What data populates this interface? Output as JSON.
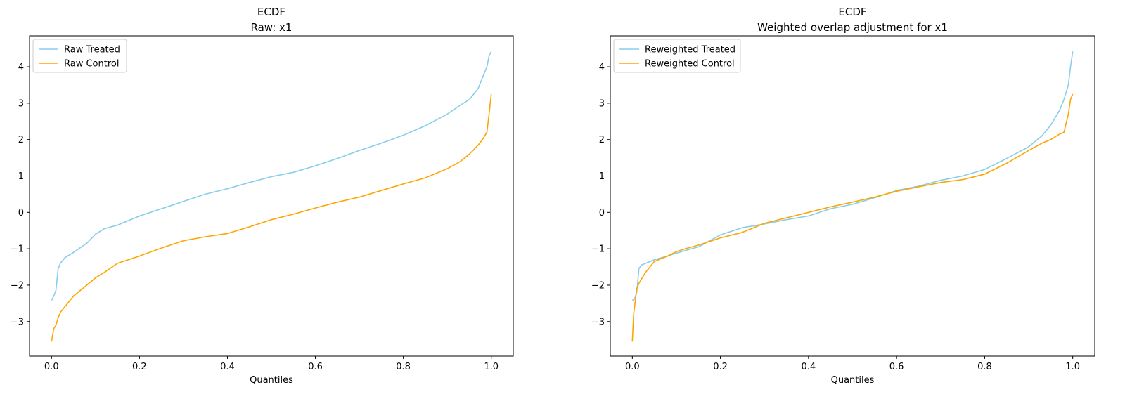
{
  "chart_data": [
    {
      "type": "line",
      "title": "ECDF",
      "subtitle": "Raw: x1",
      "xlabel": "Quantiles",
      "ylabel": "",
      "xlim": [
        -0.05,
        1.05
      ],
      "ylim": [
        -3.95,
        4.85
      ],
      "xticks": [
        "0.0",
        "0.2",
        "0.4",
        "0.6",
        "0.8",
        "1.0"
      ],
      "yticks": [
        "−3",
        "−2",
        "−1",
        "0",
        "1",
        "2",
        "3",
        "4"
      ],
      "legend_position": "top-left",
      "series": [
        {
          "name": "Raw Treated",
          "color": "#87ceeb",
          "x": [
            0.0,
            0.005,
            0.01,
            0.015,
            0.02,
            0.03,
            0.05,
            0.08,
            0.1,
            0.12,
            0.15,
            0.2,
            0.25,
            0.3,
            0.35,
            0.4,
            0.45,
            0.5,
            0.55,
            0.6,
            0.65,
            0.7,
            0.75,
            0.8,
            0.85,
            0.9,
            0.93,
            0.95,
            0.97,
            0.98,
            0.99,
            0.995,
            1.0
          ],
          "y": [
            -2.42,
            -2.3,
            -2.15,
            -1.55,
            -1.4,
            -1.25,
            -1.1,
            -0.85,
            -0.6,
            -0.45,
            -0.35,
            -0.1,
            0.1,
            0.3,
            0.5,
            0.65,
            0.82,
            0.98,
            1.1,
            1.28,
            1.48,
            1.7,
            1.9,
            2.12,
            2.38,
            2.7,
            2.95,
            3.1,
            3.4,
            3.7,
            4.0,
            4.3,
            4.42
          ]
        },
        {
          "name": "Raw Control",
          "color": "#ffa500",
          "x": [
            0.0,
            0.005,
            0.01,
            0.015,
            0.02,
            0.03,
            0.05,
            0.08,
            0.1,
            0.12,
            0.15,
            0.2,
            0.25,
            0.3,
            0.35,
            0.4,
            0.45,
            0.5,
            0.55,
            0.6,
            0.65,
            0.7,
            0.75,
            0.8,
            0.85,
            0.9,
            0.93,
            0.95,
            0.97,
            0.98,
            0.99,
            0.995,
            1.0
          ],
          "y": [
            -3.55,
            -3.2,
            -3.1,
            -2.9,
            -2.75,
            -2.6,
            -2.3,
            -2.0,
            -1.8,
            -1.65,
            -1.4,
            -1.2,
            -0.98,
            -0.78,
            -0.67,
            -0.58,
            -0.4,
            -0.2,
            -0.05,
            0.12,
            0.28,
            0.42,
            0.6,
            0.78,
            0.95,
            1.2,
            1.4,
            1.6,
            1.85,
            2.0,
            2.2,
            2.7,
            3.25
          ]
        }
      ]
    },
    {
      "type": "line",
      "title": "ECDF",
      "subtitle": "Weighted overlap adjustment for x1",
      "xlabel": "Quantiles",
      "ylabel": "",
      "xlim": [
        -0.05,
        1.05
      ],
      "ylim": [
        -3.95,
        4.85
      ],
      "xticks": [
        "0.0",
        "0.2",
        "0.4",
        "0.6",
        "0.8",
        "1.0"
      ],
      "yticks": [
        "−3",
        "−2",
        "−1",
        "0",
        "1",
        "2",
        "3",
        "4"
      ],
      "legend_position": "top-left",
      "series": [
        {
          "name": "Reweighted Treated",
          "color": "#87ceeb",
          "x": [
            0.0,
            0.005,
            0.01,
            0.015,
            0.02,
            0.03,
            0.05,
            0.08,
            0.1,
            0.12,
            0.15,
            0.2,
            0.25,
            0.3,
            0.35,
            0.4,
            0.45,
            0.5,
            0.55,
            0.6,
            0.65,
            0.7,
            0.75,
            0.8,
            0.85,
            0.9,
            0.93,
            0.95,
            0.97,
            0.98,
            0.99,
            0.995,
            1.0
          ],
          "y": [
            -2.42,
            -2.38,
            -2.2,
            -1.55,
            -1.45,
            -1.4,
            -1.3,
            -1.2,
            -1.12,
            -1.05,
            -0.95,
            -0.62,
            -0.42,
            -0.32,
            -0.2,
            -0.1,
            0.1,
            0.22,
            0.4,
            0.6,
            0.72,
            0.88,
            1.0,
            1.18,
            1.48,
            1.8,
            2.1,
            2.4,
            2.8,
            3.1,
            3.5,
            4.0,
            4.42
          ]
        },
        {
          "name": "Reweighted Control",
          "color": "#ffa500",
          "x": [
            0.0,
            0.003,
            0.006,
            0.01,
            0.015,
            0.02,
            0.03,
            0.05,
            0.08,
            0.1,
            0.12,
            0.15,
            0.2,
            0.25,
            0.3,
            0.35,
            0.4,
            0.45,
            0.5,
            0.55,
            0.6,
            0.65,
            0.7,
            0.75,
            0.8,
            0.85,
            0.9,
            0.93,
            0.95,
            0.97,
            0.98,
            0.99,
            0.995,
            1.0
          ],
          "y": [
            -3.55,
            -2.8,
            -2.5,
            -2.1,
            -1.95,
            -1.85,
            -1.65,
            -1.35,
            -1.2,
            -1.08,
            -1.0,
            -0.9,
            -0.7,
            -0.55,
            -0.3,
            -0.15,
            0.0,
            0.15,
            0.28,
            0.42,
            0.58,
            0.7,
            0.82,
            0.9,
            1.05,
            1.35,
            1.7,
            1.9,
            2.0,
            2.15,
            2.2,
            2.7,
            3.1,
            3.25
          ]
        }
      ]
    }
  ]
}
